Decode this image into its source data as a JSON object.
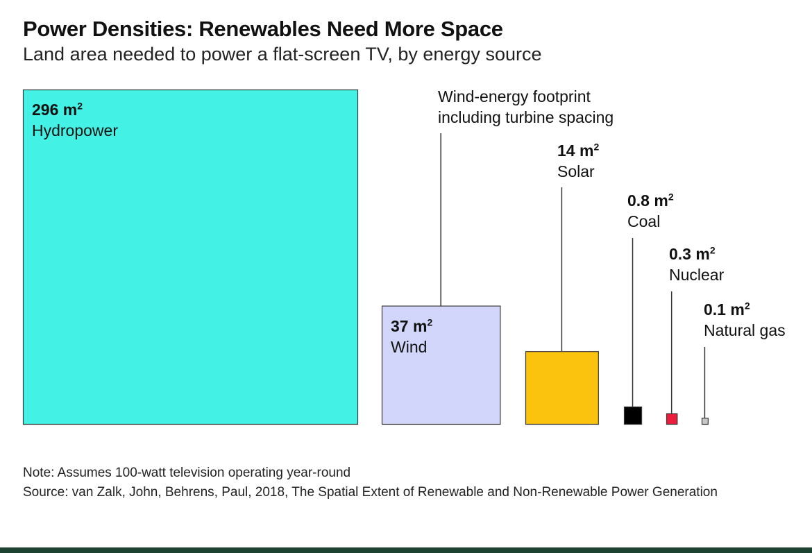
{
  "chart_data": {
    "type": "area",
    "title": "Power Densities: Renewables Need More Space",
    "subtitle": "Land area needed to power a flat-screen TV, by energy source",
    "unit": "m",
    "unit_sup": "2",
    "categories": [
      "Hydropower",
      "Wind",
      "Solar",
      "Coal",
      "Nuclear",
      "Natural gas"
    ],
    "values": [
      296,
      37,
      14,
      0.8,
      0.3,
      0.1
    ],
    "value_labels": [
      "296",
      "37",
      "14",
      "0.8",
      "0.3",
      "0.1"
    ],
    "colors": [
      "#44f2e5",
      "#d2d6fb",
      "#fbc20e",
      "#000000",
      "#ec1d3a",
      "#c7c7c7"
    ],
    "annotation": "Wind-energy footprint\nincluding turbine spacing"
  },
  "footer": {
    "note": "Note: Assumes 100-watt television operating year-round",
    "source": "Source: van Zalk, John, Behrens, Paul, 2018, The Spatial Extent of Renewable and Non-Renewable Power Generation"
  }
}
